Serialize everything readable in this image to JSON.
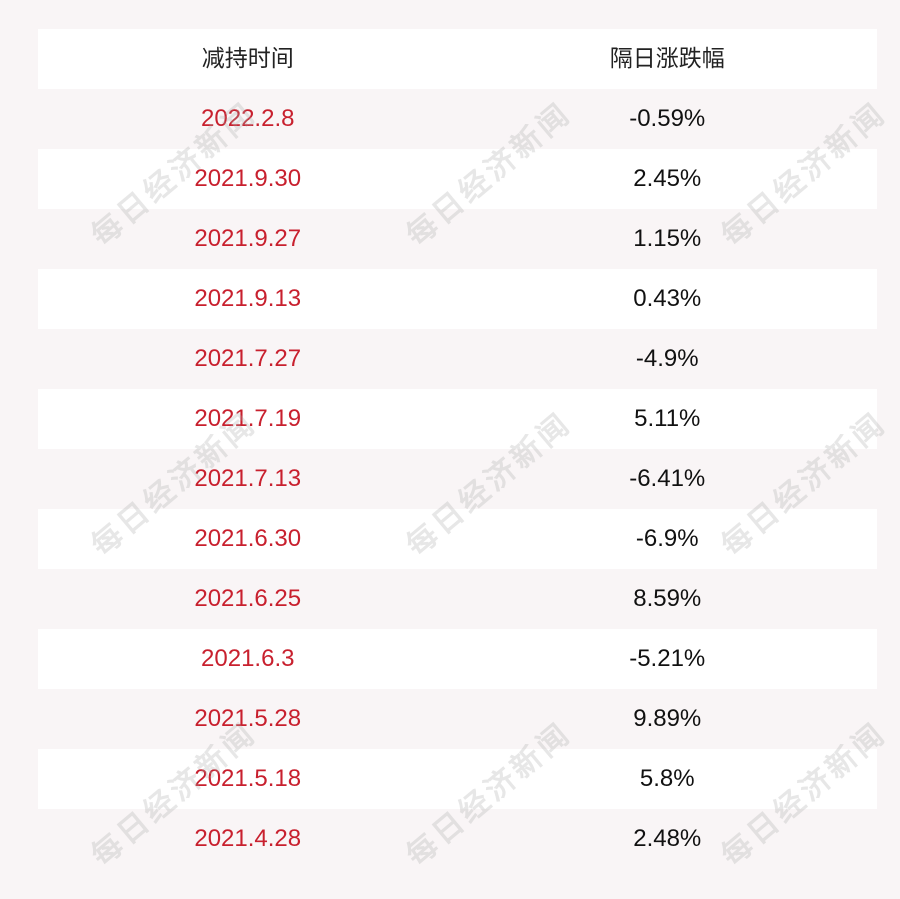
{
  "table": {
    "header": {
      "col_date": "减持时间",
      "col_change": "隔日涨跌幅"
    },
    "rows": [
      {
        "date": "2022.2.8",
        "change": "-0.59%"
      },
      {
        "date": "2021.9.30",
        "change": "2.45%"
      },
      {
        "date": "2021.9.27",
        "change": "1.15%"
      },
      {
        "date": "2021.9.13",
        "change": "0.43%"
      },
      {
        "date": "2021.7.27",
        "change": "-4.9%"
      },
      {
        "date": "2021.7.19",
        "change": "5.11%"
      },
      {
        "date": "2021.7.13",
        "change": "-6.41%"
      },
      {
        "date": "2021.6.30",
        "change": "-6.9%"
      },
      {
        "date": "2021.6.25",
        "change": "8.59%"
      },
      {
        "date": "2021.6.3",
        "change": "-5.21%"
      },
      {
        "date": "2021.5.28",
        "change": "9.89%"
      },
      {
        "date": "2021.5.18",
        "change": "5.8%"
      },
      {
        "date": "2021.4.28",
        "change": "2.48%"
      }
    ]
  },
  "watermark": {
    "text": "每日经济新闻"
  },
  "colors": {
    "date_text": "#c8202e",
    "change_text": "#111111",
    "row_white": "#ffffff",
    "row_tint": "#f9f5f6"
  }
}
